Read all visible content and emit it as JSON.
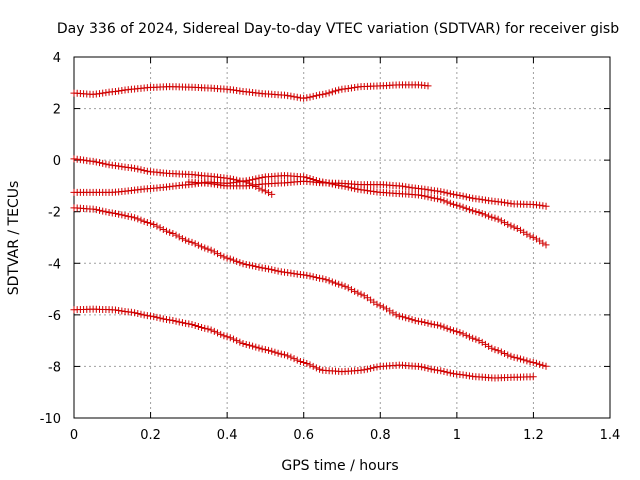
{
  "chart_data": {
    "type": "scatter",
    "title": "Day 336 of 2024, Sidereal Day-to-day VTEC variation (SDTVAR) for receiver gisb",
    "xlabel": "GPS time / hours",
    "ylabel": "SDTVAR / TECUs",
    "xlim": [
      0,
      1.4
    ],
    "ylim": [
      -10,
      4
    ],
    "xticks": [
      0,
      0.2,
      0.4,
      0.6,
      0.8,
      1,
      1.2,
      1.4
    ],
    "xtick_labels": [
      "0",
      "0.2",
      "0.4",
      "0.6",
      "0.8",
      "1",
      "1.2",
      "1.4"
    ],
    "yticks": [
      -10,
      -8,
      -6,
      -4,
      -2,
      0,
      2,
      4
    ],
    "ytick_labels": [
      "-10",
      "-8",
      "-6",
      "-4",
      "-2",
      "0",
      "2",
      "4"
    ],
    "grid": true,
    "marker": "+",
    "marker_color": "#d00000",
    "sample_step": 0.00833,
    "series": [
      {
        "name": "series-1",
        "x_start": 0.0,
        "x_end": 0.925,
        "knots": [
          [
            0.0,
            2.6
          ],
          [
            0.05,
            2.55
          ],
          [
            0.1,
            2.65
          ],
          [
            0.15,
            2.75
          ],
          [
            0.2,
            2.82
          ],
          [
            0.25,
            2.85
          ],
          [
            0.3,
            2.83
          ],
          [
            0.35,
            2.8
          ],
          [
            0.4,
            2.75
          ],
          [
            0.45,
            2.65
          ],
          [
            0.5,
            2.57
          ],
          [
            0.55,
            2.52
          ],
          [
            0.6,
            2.4
          ],
          [
            0.65,
            2.55
          ],
          [
            0.7,
            2.75
          ],
          [
            0.75,
            2.85
          ],
          [
            0.8,
            2.88
          ],
          [
            0.85,
            2.92
          ],
          [
            0.9,
            2.92
          ],
          [
            0.925,
            2.88
          ]
        ]
      },
      {
        "name": "series-2",
        "x_start": 0.0,
        "x_end": 0.52,
        "knots": [
          [
            0.0,
            0.05
          ],
          [
            0.05,
            -0.05
          ],
          [
            0.1,
            -0.2
          ],
          [
            0.15,
            -0.3
          ],
          [
            0.2,
            -0.45
          ],
          [
            0.25,
            -0.52
          ],
          [
            0.3,
            -0.55
          ],
          [
            0.35,
            -0.62
          ],
          [
            0.4,
            -0.7
          ],
          [
            0.45,
            -0.85
          ],
          [
            0.5,
            -1.2
          ],
          [
            0.52,
            -1.35
          ]
        ]
      },
      {
        "name": "series-3",
        "x_start": 0.0,
        "x_end": 1.235,
        "knots": [
          [
            0.0,
            -1.25
          ],
          [
            0.1,
            -1.25
          ],
          [
            0.2,
            -1.1
          ],
          [
            0.3,
            -0.95
          ],
          [
            0.35,
            -0.85
          ],
          [
            0.4,
            -0.9
          ],
          [
            0.45,
            -0.8
          ],
          [
            0.5,
            -0.65
          ],
          [
            0.55,
            -0.6
          ],
          [
            0.6,
            -0.65
          ],
          [
            0.65,
            -0.85
          ],
          [
            0.7,
            -1.0
          ],
          [
            0.75,
            -1.15
          ],
          [
            0.8,
            -1.25
          ],
          [
            0.85,
            -1.3
          ],
          [
            0.9,
            -1.35
          ],
          [
            0.95,
            -1.5
          ],
          [
            1.0,
            -1.75
          ],
          [
            1.05,
            -2.0
          ],
          [
            1.1,
            -2.25
          ],
          [
            1.15,
            -2.6
          ],
          [
            1.2,
            -3.0
          ],
          [
            1.235,
            -3.3
          ]
        ]
      },
      {
        "name": "series-4",
        "x_start": 0.3,
        "x_end": 1.24,
        "knots": [
          [
            0.3,
            -0.85
          ],
          [
            0.35,
            -0.9
          ],
          [
            0.4,
            -1.0
          ],
          [
            0.45,
            -1.0
          ],
          [
            0.5,
            -0.92
          ],
          [
            0.55,
            -0.88
          ],
          [
            0.6,
            -0.82
          ],
          [
            0.65,
            -0.88
          ],
          [
            0.7,
            -0.9
          ],
          [
            0.75,
            -0.95
          ],
          [
            0.8,
            -0.95
          ],
          [
            0.85,
            -1.0
          ],
          [
            0.9,
            -1.1
          ],
          [
            0.95,
            -1.2
          ],
          [
            1.0,
            -1.35
          ],
          [
            1.05,
            -1.5
          ],
          [
            1.1,
            -1.6
          ],
          [
            1.15,
            -1.7
          ],
          [
            1.2,
            -1.72
          ],
          [
            1.24,
            -1.8
          ]
        ]
      },
      {
        "name": "series-5",
        "x_start": 0.0,
        "x_end": 1.235,
        "knots": [
          [
            0.0,
            -1.85
          ],
          [
            0.05,
            -1.9
          ],
          [
            0.1,
            -2.05
          ],
          [
            0.15,
            -2.2
          ],
          [
            0.2,
            -2.45
          ],
          [
            0.25,
            -2.8
          ],
          [
            0.3,
            -3.15
          ],
          [
            0.35,
            -3.45
          ],
          [
            0.4,
            -3.8
          ],
          [
            0.45,
            -4.05
          ],
          [
            0.5,
            -4.2
          ],
          [
            0.55,
            -4.35
          ],
          [
            0.6,
            -4.45
          ],
          [
            0.65,
            -4.6
          ],
          [
            0.7,
            -4.85
          ],
          [
            0.75,
            -5.2
          ],
          [
            0.8,
            -5.65
          ],
          [
            0.85,
            -6.05
          ],
          [
            0.9,
            -6.25
          ],
          [
            0.95,
            -6.4
          ],
          [
            1.0,
            -6.65
          ],
          [
            1.05,
            -6.95
          ],
          [
            1.1,
            -7.35
          ],
          [
            1.15,
            -7.65
          ],
          [
            1.2,
            -7.85
          ],
          [
            1.235,
            -8.0
          ]
        ]
      },
      {
        "name": "series-6",
        "x_start": 0.0,
        "x_end": 1.2,
        "knots": [
          [
            0.0,
            -5.8
          ],
          [
            0.05,
            -5.78
          ],
          [
            0.1,
            -5.8
          ],
          [
            0.15,
            -5.9
          ],
          [
            0.2,
            -6.05
          ],
          [
            0.25,
            -6.2
          ],
          [
            0.3,
            -6.35
          ],
          [
            0.35,
            -6.55
          ],
          [
            0.4,
            -6.85
          ],
          [
            0.45,
            -7.15
          ],
          [
            0.5,
            -7.35
          ],
          [
            0.55,
            -7.55
          ],
          [
            0.6,
            -7.85
          ],
          [
            0.65,
            -8.15
          ],
          [
            0.7,
            -8.2
          ],
          [
            0.75,
            -8.15
          ],
          [
            0.8,
            -8.0
          ],
          [
            0.85,
            -7.95
          ],
          [
            0.9,
            -8.0
          ],
          [
            0.95,
            -8.15
          ],
          [
            1.0,
            -8.3
          ],
          [
            1.05,
            -8.4
          ],
          [
            1.1,
            -8.45
          ],
          [
            1.15,
            -8.42
          ],
          [
            1.2,
            -8.4
          ]
        ]
      }
    ]
  }
}
